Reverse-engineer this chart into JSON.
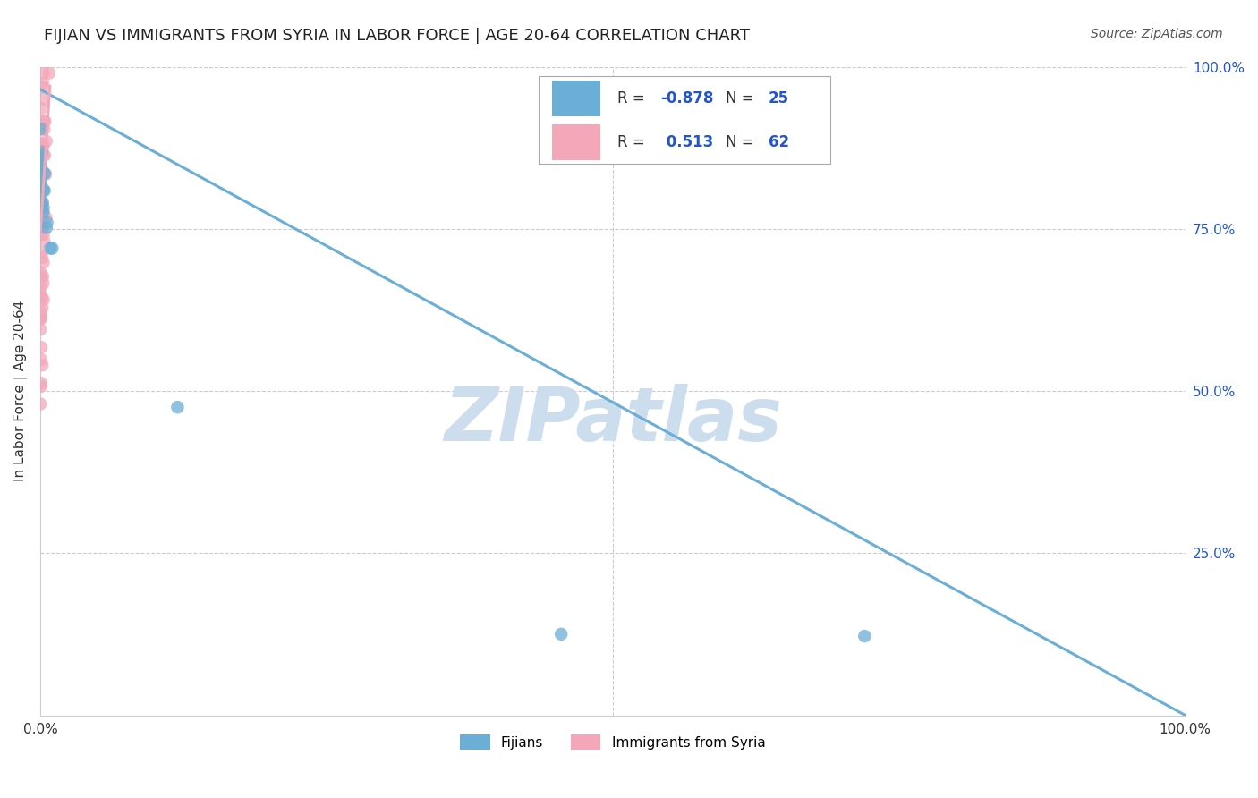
{
  "title": "FIJIAN VS IMMIGRANTS FROM SYRIA IN LABOR FORCE | AGE 20-64 CORRELATION CHART",
  "source": "Source: ZipAtlas.com",
  "ylabel": "In Labor Force | Age 20-64",
  "fijian_R": -0.878,
  "fijian_N": 25,
  "syria_R": 0.513,
  "syria_N": 62,
  "fijian_color": "#6baed6",
  "syria_color": "#f4a7b9",
  "fijian_label": "Fijians",
  "syria_label": "Immigrants from Syria",
  "watermark": "ZIPatlas",
  "watermark_color": "#ccdded",
  "value_color": "#2255cc",
  "axis_color": "#333333",
  "title_color": "#222222",
  "grid_color": "#cccccc",
  "source_color": "#555555",
  "background_color": "#ffffff",
  "fijian_line_x0": 0.0,
  "fijian_line_y0": 0.965,
  "fijian_line_x1": 1.0,
  "fijian_line_y1": 0.0,
  "syria_line_x0": 0.0,
  "syria_line_y0": 0.74,
  "syria_line_x1": 0.0085,
  "syria_line_y1": 0.97,
  "xlim": [
    0.0,
    1.0
  ],
  "ylim": [
    0.0,
    1.0
  ],
  "title_fontsize": 13,
  "label_fontsize": 11,
  "tick_fontsize": 11,
  "source_fontsize": 10,
  "legend_fontsize": 12
}
